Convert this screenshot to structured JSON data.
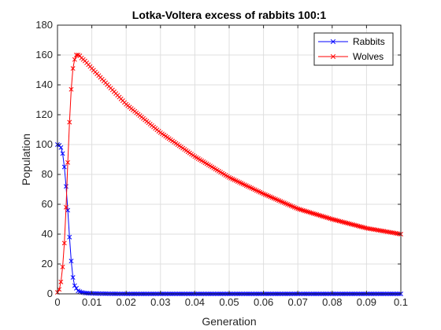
{
  "chart_data": {
    "type": "line",
    "title": "Lotka-Voltera excess of rabbits 100:1",
    "xlabel": "Generation",
    "ylabel": "Population",
    "xlim": [
      0,
      0.1
    ],
    "ylim": [
      0,
      180
    ],
    "xticks": [
      "0",
      "0.01",
      "0.02",
      "0.03",
      "0.04",
      "0.05",
      "0.06",
      "0.07",
      "0.08",
      "0.09",
      "0.1"
    ],
    "yticks": [
      "0",
      "20",
      "40",
      "60",
      "80",
      "100",
      "120",
      "140",
      "160",
      "180"
    ],
    "grid": true,
    "legend_position": "top-right",
    "marker": "x",
    "series": [
      {
        "name": "Rabbits",
        "color": "#0000ff",
        "x": [
          0,
          0.0005,
          0.001,
          0.0015,
          0.002,
          0.0025,
          0.003,
          0.0035,
          0.004,
          0.0045,
          0.005,
          0.006,
          0.007,
          0.008,
          0.009,
          0.01,
          0.012,
          0.015,
          0.02,
          0.03,
          0.05,
          0.07,
          0.1
        ],
        "y": [
          100,
          99.5,
          98,
          94,
          85,
          72,
          56,
          38,
          22,
          11,
          5.5,
          2,
          1,
          0.6,
          0.4,
          0.3,
          0.2,
          0.1,
          0,
          0,
          0,
          0,
          0
        ]
      },
      {
        "name": "Wolves",
        "color": "#ff0000",
        "x": [
          0,
          0.0005,
          0.001,
          0.0015,
          0.002,
          0.0025,
          0.003,
          0.0035,
          0.004,
          0.0045,
          0.005,
          0.0055,
          0.006,
          0.0065,
          0.007,
          0.008,
          0.01,
          0.015,
          0.02,
          0.03,
          0.04,
          0.05,
          0.06,
          0.07,
          0.08,
          0.09,
          0.1
        ],
        "y": [
          1,
          3,
          8,
          18,
          34,
          58,
          88,
          115,
          137,
          151,
          157,
          160,
          160,
          159.5,
          158,
          156,
          151,
          139,
          127,
          108,
          92,
          78,
          67,
          57,
          50,
          44,
          40
        ]
      }
    ]
  },
  "legend": {
    "items": [
      {
        "label": "Rabbits",
        "color": "#0000ff"
      },
      {
        "label": "Wolves",
        "color": "#ff0000"
      }
    ]
  }
}
